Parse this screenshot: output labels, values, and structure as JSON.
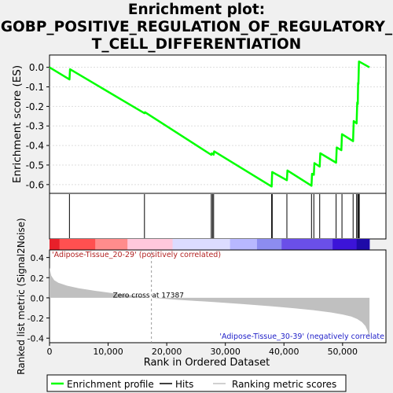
{
  "title_lines": [
    "Enrichment plot:",
    "GOBP_POSITIVE_REGULATION_OF_REGULATORY_",
    "T_CELL_DIFFERENTIATION"
  ],
  "chart_data": {
    "type": "line",
    "es_panel": {
      "ylabel": "Enrichment score (ES)",
      "yticks": [
        0.0,
        -0.1,
        -0.2,
        -0.3,
        -0.4,
        -0.5,
        -0.6
      ],
      "ylim": [
        -0.645,
        0.063
      ],
      "line_color": "#00ff00",
      "points": [
        [
          0,
          0.0
        ],
        [
          3400,
          -0.062
        ],
        [
          3500,
          -0.01
        ],
        [
          16200,
          -0.235
        ],
        [
          16300,
          -0.23
        ],
        [
          27600,
          -0.448
        ],
        [
          27700,
          -0.44
        ],
        [
          28000,
          -0.447
        ],
        [
          28100,
          -0.43
        ],
        [
          37900,
          -0.61
        ],
        [
          38000,
          -0.536
        ],
        [
          40500,
          -0.578
        ],
        [
          40600,
          -0.528
        ],
        [
          44700,
          -0.606
        ],
        [
          44800,
          -0.545
        ],
        [
          45100,
          -0.55
        ],
        [
          45200,
          -0.49
        ],
        [
          46100,
          -0.508
        ],
        [
          46200,
          -0.44
        ],
        [
          48900,
          -0.488
        ],
        [
          49000,
          -0.41
        ],
        [
          49800,
          -0.424
        ],
        [
          49900,
          -0.342
        ],
        [
          51800,
          -0.378
        ],
        [
          51900,
          -0.275
        ],
        [
          52400,
          -0.287
        ],
        [
          52500,
          -0.18
        ],
        [
          52600,
          -0.188
        ],
        [
          52650,
          -0.08
        ],
        [
          52700,
          -0.085
        ],
        [
          52800,
          0.03
        ],
        [
          54600,
          0.0
        ]
      ]
    },
    "hits": [
      3400,
      16200,
      27600,
      27800,
      28000,
      37900,
      38000,
      40500,
      44700,
      45100,
      46100,
      48900,
      49900,
      51800,
      52400,
      52600,
      52750,
      52850
    ],
    "ranked_metric_panel": {
      "ylabel": "Ranked list metric (Signal2Noise)",
      "xlabel": "Rank in Ordered Dataset",
      "yticks": [
        0.4,
        0.2,
        0.0,
        -0.2,
        -0.4
      ],
      "ylim": [
        -0.445,
        0.475
      ],
      "curve": [
        [
          0,
          0.3
        ],
        [
          300,
          0.22
        ],
        [
          800,
          0.175
        ],
        [
          1500,
          0.15
        ],
        [
          3000,
          0.12
        ],
        [
          5000,
          0.095
        ],
        [
          8000,
          0.068
        ],
        [
          11000,
          0.045
        ],
        [
          14000,
          0.025
        ],
        [
          17387,
          0.0
        ],
        [
          22000,
          -0.02
        ],
        [
          28000,
          -0.042
        ],
        [
          33000,
          -0.062
        ],
        [
          38000,
          -0.085
        ],
        [
          42000,
          -0.105
        ],
        [
          45000,
          -0.122
        ],
        [
          48000,
          -0.145
        ],
        [
          50000,
          -0.165
        ],
        [
          51500,
          -0.185
        ],
        [
          52500,
          -0.21
        ],
        [
          53300,
          -0.24
        ],
        [
          53900,
          -0.28
        ],
        [
          54300,
          -0.33
        ],
        [
          54600,
          -0.41
        ]
      ],
      "zero_cross_rank": 17387,
      "zero_cross_label": "Zero cross at 17387",
      "positive_label": "'Adipose-Tissue_20-29' (positively correlated)",
      "negative_label": "'Adipose-Tissue_30-39' (negatively correlate"
    },
    "x_axis": {
      "xlim": [
        0,
        57400
      ],
      "xticks": [
        0,
        10000,
        20000,
        30000,
        40000,
        50000
      ],
      "xtick_labels": [
        "0",
        "10,000",
        "20,000",
        "30,000",
        "40,000",
        "50,000"
      ]
    },
    "heatmap_bar": [
      {
        "from": 0,
        "to": 1700,
        "color": "#e8202a"
      },
      {
        "from": 1700,
        "to": 7800,
        "color": "#ff5050"
      },
      {
        "from": 7800,
        "to": 13300,
        "color": "#ff8c8c"
      },
      {
        "from": 13300,
        "to": 21000,
        "color": "#ffc8dc"
      },
      {
        "from": 21000,
        "to": 30800,
        "color": "#dcdcff"
      },
      {
        "from": 30800,
        "to": 35400,
        "color": "#b8b8ff"
      },
      {
        "from": 35400,
        "to": 39600,
        "color": "#8c8cf0"
      },
      {
        "from": 39600,
        "to": 48300,
        "color": "#6a4fe8"
      },
      {
        "from": 48300,
        "to": 52400,
        "color": "#3c14d8"
      },
      {
        "from": 52400,
        "to": 54600,
        "color": "#1e0aa8"
      }
    ],
    "legend": {
      "placement": "bottom",
      "items": [
        {
          "label": "Enrichment profile",
          "color": "#00ff00"
        },
        {
          "label": "Hits",
          "color": "#000000"
        },
        {
          "label": "Ranking metric scores",
          "color": "#c0c0c0"
        }
      ]
    }
  }
}
